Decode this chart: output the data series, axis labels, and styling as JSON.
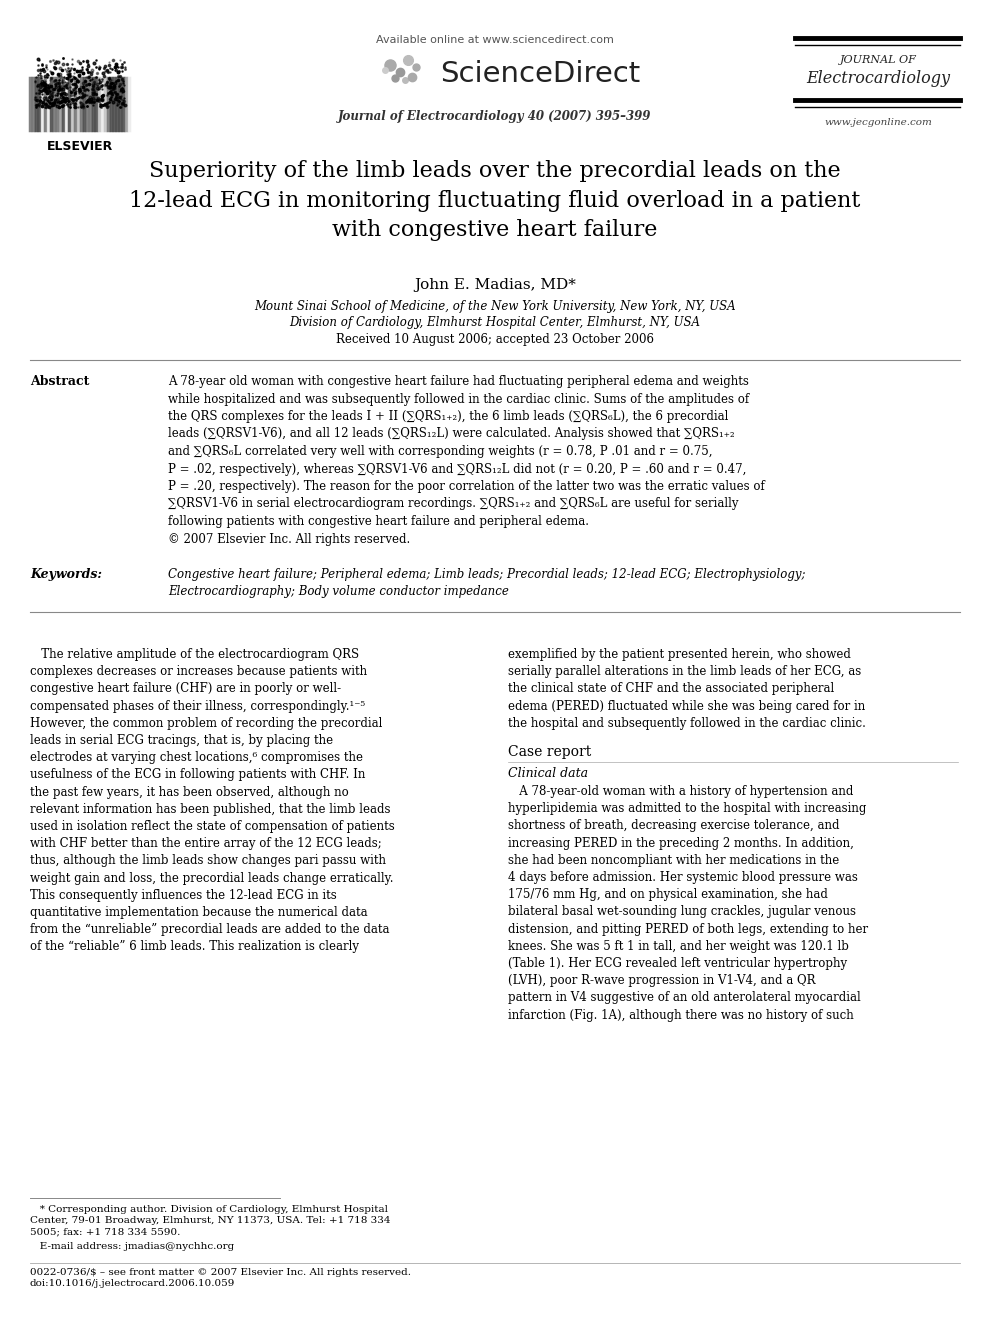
{
  "page_bg": "#ffffff",
  "available_online": "Available online at www.sciencedirect.com",
  "sciencedirect_text": "ScienceDirect",
  "journal_name_right_line1": "JOURNAL OF",
  "journal_name_right_line2": "Electrocardiology",
  "journal_citation": "Journal of Electrocardiology 40 (2007) 395–399",
  "website": "www.jecgonline.com",
  "title": "Superiority of the limb leads over the precordial leads on the\n12-lead ECG in monitoring fluctuating fluid overload in a patient\nwith congestive heart failure",
  "author": "John E. Madias, MD*",
  "affiliation1": "Mount Sinai School of Medicine, of the New York University, New York, NY, USA",
  "affiliation2": "Division of Cardiology, Elmhurst Hospital Center, Elmhurst, NY, USA",
  "received": "Received 10 August 2006; accepted 23 October 2006",
  "abstract_label": "Abstract",
  "abstract_text": "A 78-year old woman with congestive heart failure had fluctuating peripheral edema and weights\nwhile hospitalized and was subsequently followed in the cardiac clinic. Sums of the amplitudes of\nthe QRS complexes for the leads I + II (∑QRS₁₊₂), the 6 limb leads (∑QRS₆L), the 6 precordial\nleads (∑QRSV1-V6), and all 12 leads (∑QRS₁₂L) were calculated. Analysis showed that ∑QRS₁₊₂\nand ∑QRS₆L correlated very well with corresponding weights (r = 0.78, P .01 and r = 0.75,\nP = .02, respectively), whereas ∑QRSV1-V6 and ∑QRS₁₂L did not (r = 0.20, P = .60 and r = 0.47,\nP = .20, respectively). The reason for the poor correlation of the latter two was the erratic values of\n∑QRSV1-V6 in serial electrocardiogram recordings. ∑QRS₁₊₂ and ∑QRS₆L are useful for serially\nfollowing patients with congestive heart failure and peripheral edema.\n© 2007 Elsevier Inc. All rights reserved.",
  "keywords_label": "Keywords:",
  "keywords_text": "Congestive heart failure; Peripheral edema; Limb leads; Precordial leads; 12-lead ECG; Electrophysiology;\nElectrocardiography; Body volume conductor impedance",
  "body_col1_lines": [
    "   The relative amplitude of the electrocardiogram QRS",
    "complexes decreases or increases because patients with",
    "congestive heart failure (CHF) are in poorly or well-",
    "compensated phases of their illness, correspondingly.¹⁻⁵",
    "However, the common problem of recording the precordial",
    "leads in serial ECG tracings, that is, by placing the",
    "electrodes at varying chest locations,⁶ compromises the",
    "usefulness of the ECG in following patients with CHF. In",
    "the past few years, it has been observed, although no",
    "relevant information has been published, that the limb leads",
    "used in isolation reflect the state of compensation of patients",
    "with CHF better than the entire array of the 12 ECG leads;",
    "thus, although the limb leads show changes pari passu with",
    "weight gain and loss, the precordial leads change erratically.",
    "This consequently influences the 12-lead ECG in its",
    "quantitative implementation because the numerical data",
    "from the “unreliable” precordial leads are added to the data",
    "of the “reliable” 6 limb leads. This realization is clearly"
  ],
  "body_col2_lines": [
    "exemplified by the patient presented herein, who showed",
    "serially parallel alterations in the limb leads of her ECG, as",
    "the clinical state of CHF and the associated peripheral",
    "edema (PERED) fluctuated while she was being cared for in",
    "the hospital and subsequently followed in the cardiac clinic."
  ],
  "case_report_header": "Case report",
  "clinical_data_header": "Clinical data",
  "case_report_body_lines": [
    "   A 78-year-old woman with a history of hypertension and",
    "hyperlipidemia was admitted to the hospital with increasing",
    "shortness of breath, decreasing exercise tolerance, and",
    "increasing PERED in the preceding 2 months. In addition,",
    "she had been noncompliant with her medications in the",
    "4 days before admission. Her systemic blood pressure was",
    "175/76 mm Hg, and on physical examination, she had",
    "bilateral basal wet-sounding lung crackles, jugular venous",
    "distension, and pitting PERED of both legs, extending to her",
    "knees. She was 5 ft 1 in tall, and her weight was 120.1 lb",
    "(Table 1). Her ECG revealed left ventricular hypertrophy",
    "(LVH), poor R-wave progression in V1-V4, and a QR",
    "pattern in V4 suggestive of an old anterolateral myocardial",
    "infarction (Fig. 1A), although there was no history of such"
  ],
  "footnote1_lines": [
    "   * Corresponding author. Division of Cardiology, Elmhurst Hospital",
    "Center, 79-01 Broadway, Elmhurst, NY 11373, USA. Tel: +1 718 334",
    "5005; fax: +1 718 334 5590."
  ],
  "footnote2": "   E-mail address: jmadias@nychhc.org",
  "footnote3_lines": [
    "0022-0736/$ – see front matter © 2007 Elsevier Inc. All rights reserved.",
    "doi:10.1016/j.jelectrocard.2006.10.059"
  ]
}
